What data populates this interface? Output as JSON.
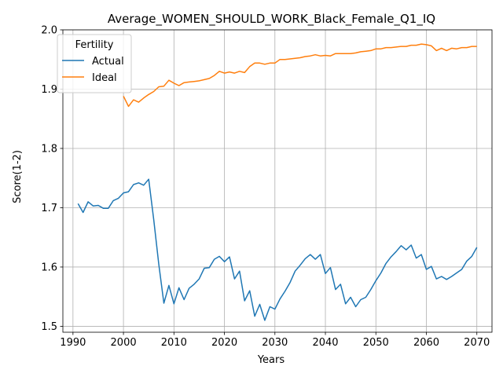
{
  "chart_data": {
    "type": "line",
    "title": "Average_WOMEN_SHOULD_WORK_Black_Female_Q1_IQ",
    "xlabel": "Years",
    "ylabel": "Score(1-2)",
    "xlim": [
      1988,
      2073
    ],
    "ylim": [
      1.49,
      2.0
    ],
    "xticks": [
      1990,
      2000,
      2010,
      2020,
      2030,
      2040,
      2050,
      2060,
      2070
    ],
    "yticks": [
      1.5,
      1.6,
      1.7,
      1.8,
      1.9,
      2.0
    ],
    "ytick_labels": [
      "1.5",
      "1.6",
      "1.7",
      "1.8",
      "1.9",
      "2.0"
    ],
    "grid": true,
    "legend": {
      "title": "Fertility",
      "position": "top-left"
    },
    "series": [
      {
        "name": "Actual",
        "color": "#1f77b4",
        "x": [
          1991,
          1992,
          1993,
          1994,
          1995,
          1996,
          1997,
          1998,
          1999,
          2000,
          2001,
          2002,
          2003,
          2004,
          2005,
          2006,
          2007,
          2008,
          2009,
          2010,
          2011,
          2012,
          2013,
          2014,
          2015,
          2016,
          2017,
          2018,
          2019,
          2020,
          2021,
          2022,
          2023,
          2024,
          2025,
          2026,
          2027,
          2028,
          2029,
          2030,
          2031,
          2032,
          2033,
          2034,
          2035,
          2036,
          2037,
          2038,
          2039,
          2040,
          2041,
          2042,
          2043,
          2044,
          2045,
          2046,
          2047,
          2048,
          2049,
          2050,
          2051,
          2052,
          2053,
          2054,
          2055,
          2056,
          2057,
          2058,
          2059,
          2060,
          2061,
          2062,
          2063,
          2064,
          2065,
          2066,
          2067,
          2068,
          2069,
          2070
        ],
        "values": [
          1.707,
          1.692,
          1.71,
          1.703,
          1.704,
          1.699,
          1.699,
          1.712,
          1.716,
          1.725,
          1.727,
          1.739,
          1.742,
          1.738,
          1.748,
          1.68,
          1.605,
          1.539,
          1.569,
          1.538,
          1.565,
          1.545,
          1.564,
          1.571,
          1.58,
          1.598,
          1.599,
          1.613,
          1.618,
          1.609,
          1.617,
          1.58,
          1.593,
          1.543,
          1.56,
          1.517,
          1.537,
          1.51,
          1.533,
          1.529,
          1.546,
          1.559,
          1.574,
          1.593,
          1.603,
          1.614,
          1.621,
          1.613,
          1.621,
          1.589,
          1.599,
          1.562,
          1.571,
          1.538,
          1.549,
          1.533,
          1.545,
          1.549,
          1.562,
          1.577,
          1.59,
          1.606,
          1.617,
          1.626,
          1.636,
          1.629,
          1.637,
          1.615,
          1.621,
          1.596,
          1.601,
          1.58,
          1.584,
          1.579,
          1.584,
          1.59,
          1.596,
          1.61,
          1.618,
          1.633
        ]
      },
      {
        "name": "Ideal",
        "color": "#ff7f0e",
        "x": [
          2000,
          2001,
          2002,
          2003,
          2004,
          2005,
          2006,
          2007,
          2008,
          2009,
          2010,
          2011,
          2012,
          2013,
          2014,
          2015,
          2016,
          2017,
          2018,
          2019,
          2020,
          2021,
          2022,
          2023,
          2024,
          2025,
          2026,
          2027,
          2028,
          2029,
          2030,
          2031,
          2032,
          2033,
          2034,
          2035,
          2036,
          2037,
          2038,
          2039,
          2040,
          2041,
          2042,
          2043,
          2044,
          2045,
          2046,
          2047,
          2048,
          2049,
          2050,
          2051,
          2052,
          2053,
          2054,
          2055,
          2056,
          2057,
          2058,
          2059,
          2060,
          2061,
          2062,
          2063,
          2064,
          2065,
          2066,
          2067,
          2068,
          2069,
          2070
        ],
        "values": [
          1.888,
          1.871,
          1.882,
          1.878,
          1.885,
          1.891,
          1.896,
          1.904,
          1.905,
          1.915,
          1.91,
          1.906,
          1.911,
          1.912,
          1.913,
          1.914,
          1.916,
          1.918,
          1.923,
          1.93,
          1.927,
          1.929,
          1.927,
          1.93,
          1.928,
          1.938,
          1.944,
          1.944,
          1.942,
          1.944,
          1.944,
          1.95,
          1.95,
          1.951,
          1.952,
          1.953,
          1.955,
          1.956,
          1.958,
          1.956,
          1.957,
          1.956,
          1.96,
          1.96,
          1.96,
          1.96,
          1.961,
          1.963,
          1.964,
          1.965,
          1.968,
          1.968,
          1.97,
          1.97,
          1.971,
          1.972,
          1.972,
          1.974,
          1.974,
          1.976,
          1.975,
          1.973,
          1.965,
          1.969,
          1.965,
          1.969,
          1.968,
          1.97,
          1.97,
          1.972,
          1.972
        ]
      }
    ]
  }
}
